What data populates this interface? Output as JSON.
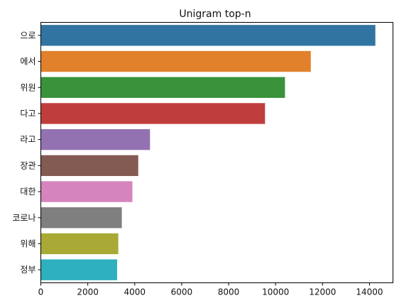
{
  "chart_data": {
    "type": "bar",
    "orientation": "horizontal",
    "title": "Unigram top-n",
    "xlabel": "",
    "ylabel": "",
    "categories": [
      "으로",
      "에서",
      "위원",
      "다고",
      "라고",
      "장관",
      "대한",
      "코로나",
      "위해",
      "정부"
    ],
    "values": [
      14250,
      11500,
      10400,
      9550,
      4650,
      4150,
      3900,
      3450,
      3300,
      3250
    ],
    "colors": [
      "#3274a1",
      "#e1812c",
      "#3a923a",
      "#c03d3e",
      "#9372b2",
      "#845b53",
      "#d684bd",
      "#7f7f7f",
      "#a9aa35",
      "#2eb0c0"
    ],
    "xlim": [
      0,
      15000
    ],
    "xticks": [
      "0",
      "2000",
      "4000",
      "6000",
      "8000",
      "10000",
      "12000",
      "14000"
    ],
    "grid": false
  }
}
